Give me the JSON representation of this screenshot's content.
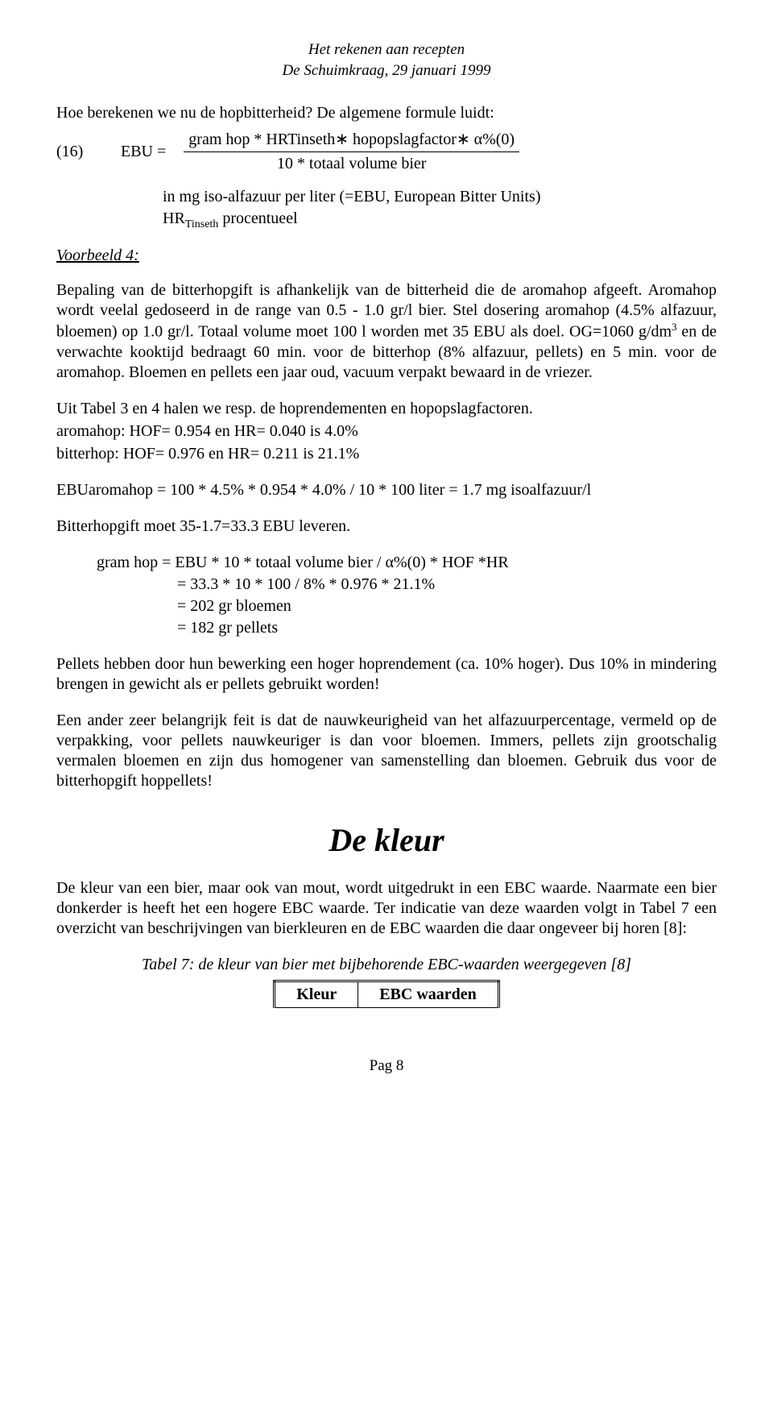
{
  "header": {
    "line1": "Het rekenen aan recepten",
    "line2": "De Schuimkraag, 29 januari 1999"
  },
  "intro": "Hoe berekenen we nu de hopbitterheid? De algemene formule luidt:",
  "formula": {
    "num": "(16)",
    "lhs": "EBU =",
    "numerator": "gram hop * HRTinseth∗ hopopslagfactor∗ α%(0)",
    "denominator": "10 * totaal volume bier"
  },
  "units_block": {
    "line1a": "in mg iso-alfazuur per liter (=EBU, European Bitter Units)",
    "line2_pre": "HR",
    "line2_sub": "Tinseth",
    "line2_post": " procentueel"
  },
  "voorbeeld": "Voorbeeld 4:",
  "para1_a": "Bepaling van de bitterhopgift is afhankelijk van de bitterheid die de aromahop afgeeft. Aromahop wordt veelal gedoseerd in de range van 0.5 - 1.0 gr/l bier. Stel dosering aromahop (4.5% alfazuur, bloemen) op 1.0 gr/l. Totaal volume moet 100 l worden met 35 EBU als doel. OG=1060 g/dm",
  "para1_sup": "3",
  "para1_b": " en de verwachte kooktijd bedraagt 60 min. voor de bitterhop (8% alfazuur, pellets) en 5 min. voor de aromahop. Bloemen en pellets een jaar oud, vacuum verpakt bewaard in de vriezer.",
  "para2_l1": "Uit Tabel 3 en 4 halen we resp. de hoprendementen en hopopslagfactoren.",
  "para2_l2": "aromahop: HOF= 0.954 en HR= 0.040 is 4.0%",
  "para2_l3": "bitterhop: HOF= 0.976 en HR= 0.211 is 21.1%",
  "ebu_aroma": "EBUaromahop = 100 * 4.5% * 0.954 * 4.0% / 10 * 100 liter = 1.7 mg isoalfazuur/l",
  "bitterhop_must": "Bitterhopgift moet 35-1.7=33.3 EBU leveren.",
  "calc": {
    "l1": "gram hop = EBU * 10 * totaal volume bier / α%(0) * HOF *HR",
    "l2": "= 33.3 * 10 * 100 / 8% * 0.976 * 21.1%",
    "l3": "= 202 gr bloemen",
    "l4": "= 182 gr pellets"
  },
  "pellets_para": "Pellets hebben door hun bewerking een hoger hoprendement (ca. 10% hoger). Dus 10% in mindering brengen in gewicht als er pellets gebruikt worden!",
  "belangrijk_para": "Een ander zeer belangrijk feit is dat de nauwkeurigheid van het alfazuurpercentage, vermeld op de verpakking, voor pellets nauwkeuriger is dan voor bloemen. Immers, pellets zijn grootschalig vermalen bloemen en zijn dus homogener van samenstelling dan bloemen. Gebruik dus voor de bitterhopgift hoppellets!",
  "section_title": "De kleur",
  "kleur_para": "De kleur van een bier, maar ook van mout, wordt uitgedrukt in een EBC waarde. Naarmate een bier donkerder is heeft het een hogere EBC waarde. Ter indicatie van deze waarden volgt in Tabel 7 een overzicht van beschrijvingen van bierkleuren en de EBC waarden die daar ongeveer bij horen [8]:",
  "table7": {
    "caption": "Tabel 7: de kleur van bier met bijbehorende EBC-waarden weergegeven [8]",
    "col1": "Kleur",
    "col2": "EBC waarden"
  },
  "footer": "Pag 8"
}
